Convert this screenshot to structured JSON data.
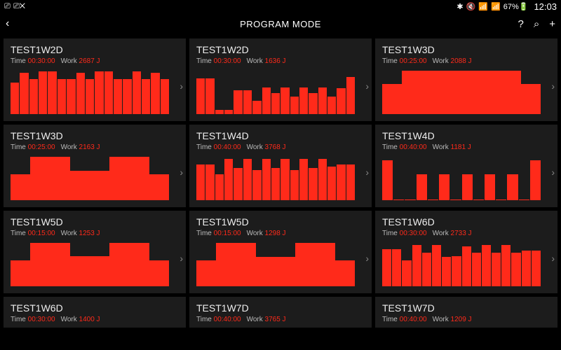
{
  "status": {
    "left_icons": [
      "⎚",
      "⎚✕"
    ],
    "right_icons": [
      "✱",
      "🔇",
      "📶",
      "📶",
      "67%🔋"
    ],
    "clock": "12:03"
  },
  "header": {
    "title": "PROGRAM MODE",
    "back": "‹",
    "help": "?",
    "search": "⌕",
    "add": "+"
  },
  "colors": {
    "accent": "#ff2a1a",
    "card_bg": "#1c1c1c",
    "bg": "#000000"
  },
  "labels": {
    "time": "Time",
    "work": "Work",
    "work_unit": "J"
  },
  "cards": [
    {
      "title": "TEST1W2D",
      "time": "00:30:00",
      "work": "2687",
      "chart": {
        "type": "bar",
        "gap": 1,
        "values": [
          72,
          95,
          80,
          98,
          98,
          80,
          80,
          95,
          80,
          98,
          98,
          80,
          80,
          98,
          80,
          95,
          80
        ]
      }
    },
    {
      "title": "TEST1W2D",
      "time": "00:30:00",
      "work": "1636",
      "chart": {
        "type": "bar",
        "gap": 1,
        "values": [
          82,
          82,
          10,
          10,
          55,
          55,
          30,
          62,
          48,
          62,
          40,
          62,
          48,
          62,
          40,
          60,
          85
        ]
      }
    },
    {
      "title": "TEST1W3D",
      "time": "00:25:00",
      "work": "2088",
      "chart": {
        "type": "bar",
        "gap": 0,
        "values": [
          70,
          100,
          100,
          100,
          100,
          100,
          100,
          70
        ]
      }
    },
    {
      "title": "TEST1W3D",
      "time": "00:25:00",
      "work": "2163",
      "chart": {
        "type": "bar",
        "gap": 0,
        "values": [
          60,
          100,
          100,
          68,
          68,
          100,
          100,
          60
        ]
      }
    },
    {
      "title": "TEST1W4D",
      "time": "00:40:00",
      "work": "3768",
      "chart": {
        "type": "bar",
        "gap": 1,
        "values": [
          82,
          82,
          60,
          95,
          74,
          95,
          70,
          95,
          74,
          95,
          70,
          95,
          74,
          95,
          78,
          82,
          82
        ]
      }
    },
    {
      "title": "TEST1W4D",
      "time": "00:40:00",
      "work": "1181",
      "chart": {
        "type": "bar",
        "gap": 1,
        "values": [
          92,
          2,
          2,
          60,
          2,
          60,
          2,
          60,
          2,
          60,
          2,
          60,
          2,
          92
        ]
      }
    },
    {
      "title": "TEST1W5D",
      "time": "00:15:00",
      "work": "1253",
      "chart": {
        "type": "bar",
        "gap": 0,
        "values": [
          60,
          100,
          100,
          70,
          70,
          100,
          100,
          60
        ]
      }
    },
    {
      "title": "TEST1W5D",
      "time": "00:15:00",
      "work": "1298",
      "chart": {
        "type": "bar",
        "gap": 0,
        "values": [
          60,
          100,
          100,
          68,
          68,
          100,
          100,
          60
        ]
      }
    },
    {
      "title": "TEST1W6D",
      "time": "00:30:00",
      "work": "2733",
      "chart": {
        "type": "bar",
        "gap": 1,
        "values": [
          85,
          85,
          60,
          95,
          78,
          95,
          68,
          70,
          92,
          78,
          95,
          78,
          95,
          78,
          82,
          82
        ]
      }
    },
    {
      "title": "TEST1W6D",
      "time": "00:30:00",
      "work": "1400",
      "chart": {
        "type": "bar",
        "gap": 1,
        "values": []
      }
    },
    {
      "title": "TEST1W7D",
      "time": "00:40:00",
      "work": "3765",
      "chart": {
        "type": "bar",
        "gap": 1,
        "values": []
      }
    },
    {
      "title": "TEST1W7D",
      "time": "00:40:00",
      "work": "1209",
      "chart": {
        "type": "bar",
        "gap": 1,
        "values": []
      }
    }
  ]
}
